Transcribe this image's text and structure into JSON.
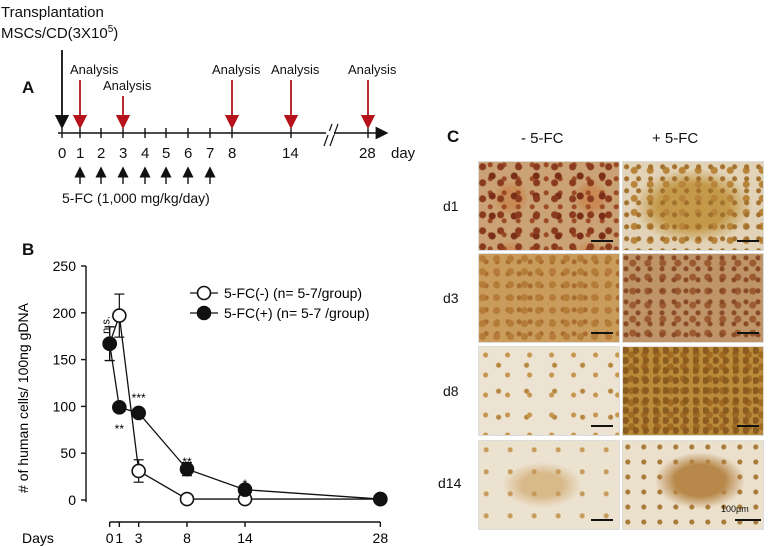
{
  "figure": {
    "panel_a": {
      "letter": "A",
      "transplant_line1": "Transplantation",
      "transplant_line2": "MSCs/CD(3X10",
      "transplant_sup": "5",
      "transplant_close": ")",
      "analysis_label": "Analysis",
      "analysis_days": [
        "1",
        "3",
        "8",
        "14",
        "28"
      ],
      "timeline_ticks": [
        "0",
        "1",
        "2",
        "3",
        "4",
        "5",
        "6",
        "7",
        "8",
        "14",
        "28"
      ],
      "day_unit": "day",
      "break_mark": "//",
      "treatment_label": "5-FC (1,000 mg/kg/day)",
      "treatment_days": [
        "1",
        "2",
        "3",
        "4",
        "5",
        "6",
        "7"
      ],
      "colors": {
        "analysis_arrow": "#b5121b",
        "timeline": "#111111"
      }
    },
    "panel_b": {
      "letter": "B",
      "chart_data": {
        "type": "line",
        "title": "",
        "xlabel": "Days",
        "ylabel": "# of human cells/ 100ng gDNA",
        "ylim": [
          0,
          250
        ],
        "yticks": [
          0,
          50,
          100,
          150,
          200,
          250
        ],
        "xticks": [
          0,
          1,
          3,
          8,
          14,
          28
        ],
        "series": [
          {
            "name": "5-FC(-)  (n=  5-7/group)",
            "marker": "open-circle",
            "x": [
              0,
              1,
              3,
              8,
              14,
              28
            ],
            "y": [
              167,
              197,
              31,
              1,
              1,
              1
            ],
            "err": [
              18,
              23,
              12,
              0,
              0,
              0
            ]
          },
          {
            "name": "5-FC(+) (n= 5-7 /group)",
            "marker": "filled-circle",
            "x": [
              0,
              1,
              3,
              8,
              14,
              28
            ],
            "y": [
              167,
              99,
              93,
              33,
              11,
              1
            ],
            "err": [
              18,
              0,
              0,
              7,
              0,
              0
            ]
          }
        ],
        "annotations": [
          {
            "x": 1,
            "text": "n.s."
          },
          {
            "x": 1,
            "text": "**"
          },
          {
            "x": 3,
            "text": "***"
          },
          {
            "x": 8,
            "text": "**"
          },
          {
            "x": 14,
            "text": "*"
          }
        ],
        "legend": "top-right",
        "grid": false
      }
    },
    "panel_c": {
      "letter": "C",
      "col_headers": [
        "- 5-FC",
        "+ 5-FC"
      ],
      "row_labels": [
        "d1",
        "d3",
        "d8",
        "d14"
      ],
      "scale_label": "100μm"
    }
  }
}
